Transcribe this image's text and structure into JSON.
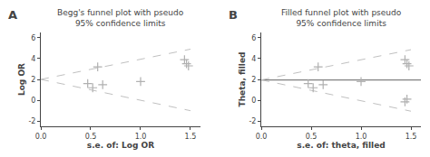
{
  "chart_data": [
    {
      "type": "scatter",
      "title": "Begg's funnel plot with pseudo\n95% confidence limits",
      "xlabel": "s.e. of: Log OR",
      "ylabel": "Log OR",
      "annotations": [
        "A"
      ],
      "series": [
        {
          "type": "line",
          "line_style": "dashed",
          "color": "#c0c0c0",
          "x": [
            0,
            1.5
          ],
          "values": [
            2.0,
            4.9
          ]
        },
        {
          "type": "line",
          "line_style": "dashed",
          "color": "#c0c0c0",
          "x": [
            0,
            1.5
          ],
          "values": [
            2.0,
            -1.0
          ]
        },
        {
          "type": "scatter",
          "marker": "plus",
          "color": "#b0b0b0",
          "x": [
            0.47,
            0.52,
            0.57,
            0.62,
            1.0,
            1.44,
            1.46,
            1.48
          ],
          "values": [
            1.6,
            1.2,
            3.2,
            1.5,
            1.8,
            3.9,
            3.5,
            3.3
          ]
        }
      ],
      "xlim": [
        0,
        1.6
      ],
      "ylim": [
        -2.5,
        6.5
      ],
      "xticks": [
        {
          "value": 0,
          "label": "0.0"
        },
        0.5,
        {
          "value": 1,
          "label": "1.0"
        },
        1.5
      ],
      "yticks": [
        -2,
        0,
        2,
        4,
        6
      ],
      "grid": false
    },
    {
      "type": "scatter",
      "title": "Filled funnel plot with pseudo\n95% confidence limits",
      "xlabel": "s.e. of: theta, filled",
      "ylabel": "Theta, filled",
      "annotations": [
        "B"
      ],
      "series": [
        {
          "type": "line",
          "line_style": "dashed",
          "color": "#c0c0c0",
          "x": [
            0,
            1.5
          ],
          "values": [
            1.95,
            4.85
          ]
        },
        {
          "type": "line",
          "line_style": "dashed",
          "color": "#c0c0c0",
          "x": [
            0,
            1.5
          ],
          "values": [
            1.95,
            -1.05
          ]
        },
        {
          "type": "hline",
          "line_style": "solid",
          "color": "#808080",
          "values": [
            1.95
          ]
        },
        {
          "type": "scatter",
          "marker": "plus",
          "color": "#b0b0b0",
          "x": [
            0.47,
            0.52,
            0.57,
            0.62,
            1.0,
            1.44,
            1.46,
            1.48,
            1.44,
            1.46
          ],
          "values": [
            1.6,
            1.2,
            3.2,
            1.5,
            1.8,
            3.9,
            3.5,
            3.3,
            -0.15,
            0.1
          ]
        }
      ],
      "xlim": [
        0,
        1.6
      ],
      "ylim": [
        -2.5,
        6.5
      ],
      "xticks": [
        {
          "value": 0,
          "label": "0.0"
        },
        0.5,
        {
          "value": 1,
          "label": "1.0"
        },
        1.5
      ],
      "yticks": [
        -2,
        0,
        2,
        4,
        6
      ],
      "grid": false
    }
  ]
}
